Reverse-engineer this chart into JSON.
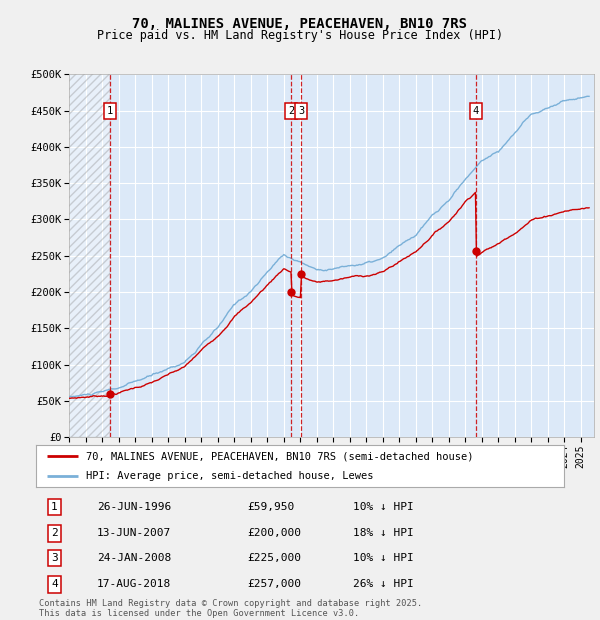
{
  "title": "70, MALINES AVENUE, PEACEHAVEN, BN10 7RS",
  "subtitle": "Price paid vs. HM Land Registry's House Price Index (HPI)",
  "ylim": [
    0,
    500000
  ],
  "yticks": [
    0,
    50000,
    100000,
    150000,
    200000,
    250000,
    300000,
    350000,
    400000,
    450000,
    500000
  ],
  "ytick_labels": [
    "£0",
    "£50K",
    "£100K",
    "£150K",
    "£200K",
    "£250K",
    "£300K",
    "£350K",
    "£400K",
    "£450K",
    "£500K"
  ],
  "xlim_start": 1994.0,
  "xlim_end": 2025.8,
  "transactions": [
    {
      "num": 1,
      "date": "26-JUN-1996",
      "year": 1996.48,
      "price": 59950,
      "label": "10% ↓ HPI"
    },
    {
      "num": 2,
      "date": "13-JUN-2007",
      "year": 2007.45,
      "price": 200000,
      "label": "18% ↓ HPI"
    },
    {
      "num": 3,
      "date": "24-JAN-2008",
      "year": 2008.07,
      "price": 225000,
      "label": "10% ↓ HPI"
    },
    {
      "num": 4,
      "date": "17-AUG-2018",
      "year": 2018.63,
      "price": 257000,
      "label": "26% ↓ HPI"
    }
  ],
  "legend_line1": "70, MALINES AVENUE, PEACEHAVEN, BN10 7RS (semi-detached house)",
  "legend_line2": "HPI: Average price, semi-detached house, Lewes",
  "footer": "Contains HM Land Registry data © Crown copyright and database right 2025.\nThis data is licensed under the Open Government Licence v3.0.",
  "bg_color": "#dce9f8",
  "grid_color": "#ffffff",
  "red_line_color": "#cc0000",
  "blue_line_color": "#7ab0d8",
  "marker_color": "#cc0000",
  "vline_color": "#cc0000",
  "number_box_color": "#cc0000",
  "fig_bg": "#f0f0f0"
}
